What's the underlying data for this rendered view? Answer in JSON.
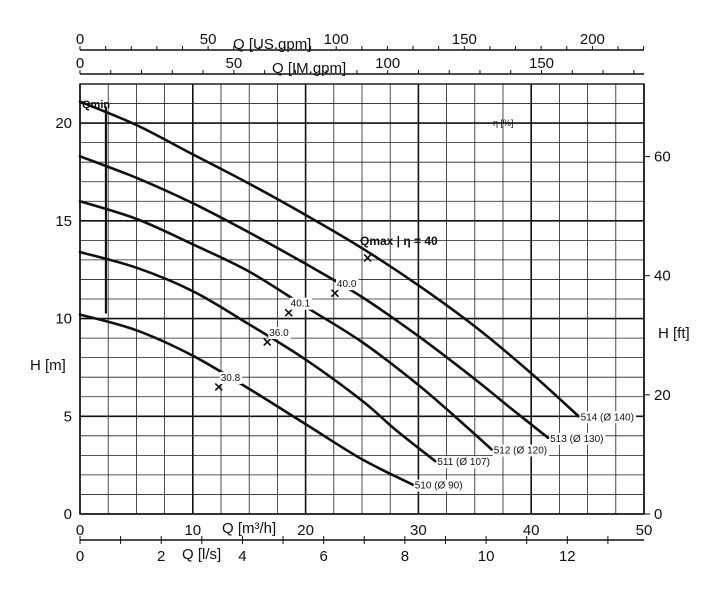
{
  "chart_data": {
    "type": "line",
    "title": "",
    "xlabel": "Q [m³/h]",
    "ylabel": "H [m]",
    "xlim": [
      0,
      50
    ],
    "ylim": [
      0,
      22
    ],
    "grid": true,
    "x_ticks": [
      "0",
      "10",
      "20",
      "30",
      "40",
      "50"
    ],
    "y_ticks": [
      "0",
      "5",
      "10",
      "15",
      "20"
    ],
    "secondary_axes": {
      "top_usgpm": {
        "label": "Q [US.gpm]",
        "ticks": [
          "0",
          "50",
          "100",
          "150",
          "200"
        ]
      },
      "top_imgpm": {
        "label": "Q [IM.gpm]",
        "ticks": [
          "0",
          "50",
          "100",
          "150"
        ]
      },
      "bottom_ls": {
        "label": "Q [l/s]",
        "ticks": [
          "0",
          "2",
          "4",
          "6",
          "8",
          "10",
          "12"
        ]
      },
      "right_ft": {
        "label": "H [ft]",
        "ticks": [
          "0",
          "20",
          "40",
          "60"
        ]
      }
    },
    "annotations": {
      "qmin": "Qmin",
      "qmax": "Qmax | η = 40",
      "eta_unit": "η [%]"
    },
    "qmin_x": 2.3,
    "series": [
      {
        "name": "514 (Ø 140)",
        "x": [
          0,
          5,
          10,
          15,
          20,
          25,
          30,
          35,
          40,
          44.2
        ],
        "y": [
          21.1,
          19.9,
          18.4,
          16.9,
          15.3,
          13.6,
          11.7,
          9.6,
          7.2,
          5.0
        ]
      },
      {
        "name": "513 (Ø 130)",
        "x": [
          0,
          5,
          10,
          15,
          20,
          25,
          30,
          35,
          38,
          41.5
        ],
        "y": [
          18.3,
          17.2,
          15.9,
          14.4,
          12.8,
          11.1,
          9.1,
          6.9,
          5.5,
          3.9
        ]
      },
      {
        "name": "512 (Ø 120)",
        "x": [
          0,
          5,
          10,
          15,
          20,
          25,
          30,
          34,
          36.5
        ],
        "y": [
          16.0,
          15.1,
          13.8,
          12.4,
          10.6,
          8.8,
          6.6,
          4.6,
          3.3
        ]
      },
      {
        "name": "511 (Ø 107)",
        "x": [
          0,
          5,
          10,
          15,
          20,
          25,
          28,
          31.5
        ],
        "y": [
          13.4,
          12.6,
          11.4,
          9.7,
          7.9,
          5.8,
          4.3,
          2.7
        ]
      },
      {
        "name": "510 (Ø 90)",
        "x": [
          0,
          5,
          10,
          15,
          20,
          25,
          29.5
        ],
        "y": [
          10.2,
          9.4,
          8.1,
          6.4,
          4.6,
          2.8,
          1.5
        ]
      }
    ],
    "efficiency_marks": [
      {
        "label": "30.8",
        "x": 12.3,
        "y": 6.5
      },
      {
        "label": "36.0",
        "x": 16.6,
        "y": 8.8
      },
      {
        "label": "40.1",
        "x": 18.5,
        "y": 10.3
      },
      {
        "label": "40.0",
        "x": 22.6,
        "y": 11.3
      },
      {
        "label": "",
        "x": 25.5,
        "y": 13.1
      }
    ]
  }
}
